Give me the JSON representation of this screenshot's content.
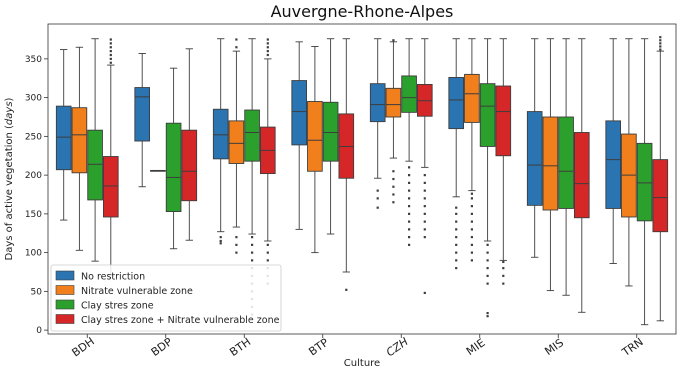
{
  "chart_data": {
    "type": "boxplot",
    "title": "Auvergne-Rhone-Alpes",
    "xlabel": "Culture",
    "ylabel_main": "Days of active vegetation (",
    "ylabel_unit": "days",
    "ylabel_close": ")",
    "ylim": [
      -5,
      395
    ],
    "yticks": [
      0,
      50,
      100,
      150,
      200,
      250,
      300,
      350
    ],
    "legend_position": "lower-left",
    "categories": [
      "BDH",
      "BDP",
      "BTH",
      "BTP",
      "CZH",
      "MIE",
      "MIS",
      "TRN"
    ],
    "series": [
      {
        "name": "No restriction",
        "color": "#2a74b2",
        "boxes": [
          {
            "min": 142,
            "q1": 207,
            "median": 249,
            "q3": 289,
            "max": 362,
            "outliers": []
          },
          {
            "min": 185,
            "q1": 244,
            "median": 301,
            "q3": 313,
            "max": 357,
            "outliers": []
          },
          {
            "min": 127,
            "q1": 221,
            "median": 252,
            "q3": 285,
            "max": 376,
            "outliers": [
              112,
              115,
              120
            ]
          },
          {
            "min": 130,
            "q1": 239,
            "median": 282,
            "q3": 322,
            "max": 372,
            "outliers": []
          },
          {
            "min": 196,
            "q1": 269,
            "median": 291,
            "q3": 318,
            "max": 376,
            "outliers": [
              158,
              170,
              180
            ]
          },
          {
            "min": 172,
            "q1": 260,
            "median": 297,
            "q3": 326,
            "max": 376,
            "outliers": [
              80,
              90,
              100,
              110,
              120,
              130,
              140,
              150,
              158
            ]
          },
          {
            "min": 94,
            "q1": 161,
            "median": 213,
            "q3": 282,
            "max": 376,
            "outliers": []
          },
          {
            "min": 86,
            "q1": 157,
            "median": 220,
            "q3": 270,
            "max": 376,
            "outliers": []
          }
        ]
      },
      {
        "name": "Nitrate vulnerable zone",
        "color": "#f07f1c",
        "boxes": [
          {
            "min": 103,
            "q1": 203,
            "median": 252,
            "q3": 287,
            "max": 365,
            "outliers": []
          },
          {
            "min": 206,
            "q1": 206,
            "median": 206,
            "q3": 206,
            "max": 206,
            "outliers": []
          },
          {
            "min": 133,
            "q1": 215,
            "median": 241,
            "q3": 270,
            "max": 360,
            "outliers": [
              100,
              110,
              120,
              365,
              375
            ]
          },
          {
            "min": 100,
            "q1": 205,
            "median": 245,
            "q3": 295,
            "max": 366,
            "outliers": []
          },
          {
            "min": 222,
            "q1": 275,
            "median": 291,
            "q3": 312,
            "max": 372,
            "outliers": [
              165,
              175,
              185,
              195,
              205,
              374
            ]
          },
          {
            "min": 180,
            "q1": 268,
            "median": 305,
            "q3": 330,
            "max": 376,
            "outliers": [
              90,
              100,
              110,
              120,
              130,
              140,
              150,
              160,
              170,
              176
            ]
          },
          {
            "min": 51,
            "q1": 155,
            "median": 212,
            "q3": 275,
            "max": 376,
            "outliers": []
          },
          {
            "min": 57,
            "q1": 146,
            "median": 200,
            "q3": 253,
            "max": 376,
            "outliers": []
          }
        ]
      },
      {
        "name": "Clay stres zone",
        "color": "#2ca02c",
        "boxes": [
          {
            "min": 89,
            "q1": 168,
            "median": 214,
            "q3": 258,
            "max": 376,
            "outliers": []
          },
          {
            "min": 105,
            "q1": 153,
            "median": 197,
            "q3": 267,
            "max": 338,
            "outliers": []
          },
          {
            "min": 124,
            "q1": 218,
            "median": 255,
            "q3": 284,
            "max": 376,
            "outliers": [
              20,
              30,
              40,
              50,
              60,
              70,
              80,
              90,
              100,
              110,
              120
            ]
          },
          {
            "min": 124,
            "q1": 218,
            "median": 255,
            "q3": 294,
            "max": 376,
            "outliers": []
          },
          {
            "min": 218,
            "q1": 281,
            "median": 300,
            "q3": 328,
            "max": 376,
            "outliers": [
              110,
              120,
              130,
              140,
              150,
              160,
              170,
              180,
              190,
              200,
              210
            ]
          },
          {
            "min": 115,
            "q1": 237,
            "median": 289,
            "q3": 318,
            "max": 376,
            "outliers": [
              18,
              22,
              60,
              70,
              80,
              90,
              100,
              110
            ]
          },
          {
            "min": 45,
            "q1": 157,
            "median": 205,
            "q3": 275,
            "max": 376,
            "outliers": []
          },
          {
            "min": 7,
            "q1": 141,
            "median": 190,
            "q3": 241,
            "max": 376,
            "outliers": []
          }
        ]
      },
      {
        "name": "Clay stres zone + Nitrate vulnerable zone",
        "color": "#d62728",
        "boxes": [
          {
            "min": 71,
            "q1": 146,
            "median": 186,
            "q3": 224,
            "max": 342,
            "outliers": [
              345,
              350,
              355,
              360,
              365,
              370,
              375
            ]
          },
          {
            "min": 116,
            "q1": 167,
            "median": 205,
            "q3": 258,
            "max": 363,
            "outliers": []
          },
          {
            "min": 115,
            "q1": 202,
            "median": 232,
            "q3": 262,
            "max": 350,
            "outliers": [
              60,
              70,
              80,
              90,
              100,
              110,
              355,
              360,
              365,
              370,
              375
            ]
          },
          {
            "min": 75,
            "q1": 196,
            "median": 237,
            "q3": 279,
            "max": 376,
            "outliers": [
              52
            ]
          },
          {
            "min": 210,
            "q1": 276,
            "median": 296,
            "q3": 317,
            "max": 376,
            "outliers": [
              48,
              120,
              130,
              140,
              150,
              160,
              170,
              180,
              190,
              200
            ]
          },
          {
            "min": 90,
            "q1": 225,
            "median": 282,
            "q3": 315,
            "max": 376,
            "outliers": [
              60,
              70,
              80,
              88
            ]
          },
          {
            "min": 23,
            "q1": 145,
            "median": 189,
            "q3": 255,
            "max": 376,
            "outliers": []
          },
          {
            "min": 12,
            "q1": 127,
            "median": 171,
            "q3": 220,
            "max": 360,
            "outliers": [
              362,
              366,
              370,
              374,
              378
            ]
          }
        ]
      }
    ]
  }
}
